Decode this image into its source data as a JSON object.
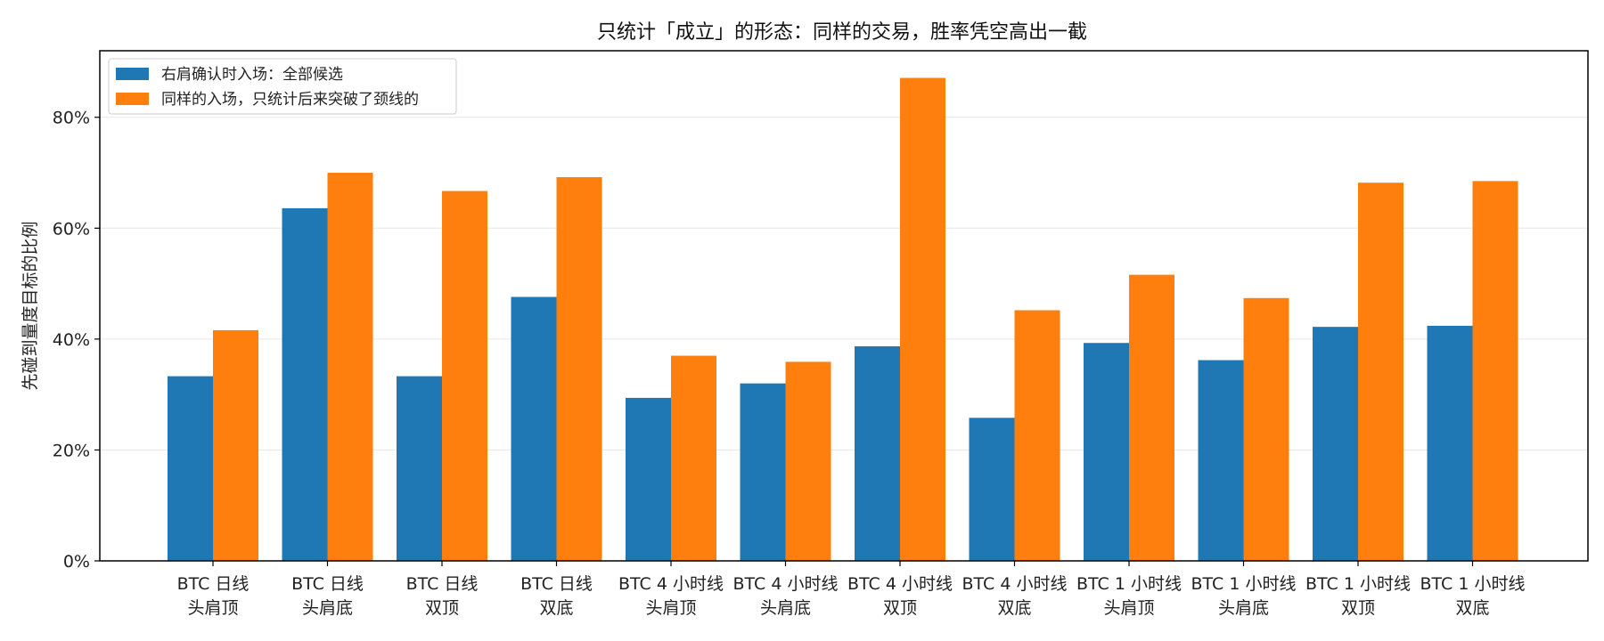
{
  "chart_data": {
    "type": "bar",
    "title": "只统计「成立」的形态：同样的交易，胜率凭空高出一截",
    "xlabel": "",
    "ylabel": "先碰到量度目标的比例",
    "ylim": [
      0,
      0.92
    ],
    "yticks": [
      0,
      0.2,
      0.4,
      0.6,
      0.8
    ],
    "ytick_labels": [
      "0%",
      "20%",
      "40%",
      "60%",
      "80%"
    ],
    "grid": "y",
    "legend_position": "top-left",
    "categories": [
      [
        "BTC 日线",
        "头肩顶"
      ],
      [
        "BTC 日线",
        "头肩底"
      ],
      [
        "BTC 日线",
        "双顶"
      ],
      [
        "BTC 日线",
        "双底"
      ],
      [
        "BTC 4 小时线",
        "头肩顶"
      ],
      [
        "BTC 4 小时线",
        "头肩底"
      ],
      [
        "BTC 4 小时线",
        "双顶"
      ],
      [
        "BTC 4 小时线",
        "双底"
      ],
      [
        "BTC 1 小时线",
        "头肩顶"
      ],
      [
        "BTC 1 小时线",
        "头肩底"
      ],
      [
        "BTC 1 小时线",
        "双顶"
      ],
      [
        "BTC 1 小时线",
        "双底"
      ]
    ],
    "series": [
      {
        "name": "右肩确认时入场：全部候选",
        "color": "#1f77b4",
        "values": [
          0.333,
          0.636,
          0.333,
          0.476,
          0.294,
          0.32,
          0.387,
          0.258,
          0.393,
          0.362,
          0.422,
          0.424
        ]
      },
      {
        "name": "同样的入场，只统计后来突破了颈线的",
        "color": "#ff7f0e",
        "values": [
          0.416,
          0.7,
          0.667,
          0.692,
          0.37,
          0.359,
          0.871,
          0.452,
          0.516,
          0.474,
          0.682,
          0.685
        ]
      }
    ]
  }
}
